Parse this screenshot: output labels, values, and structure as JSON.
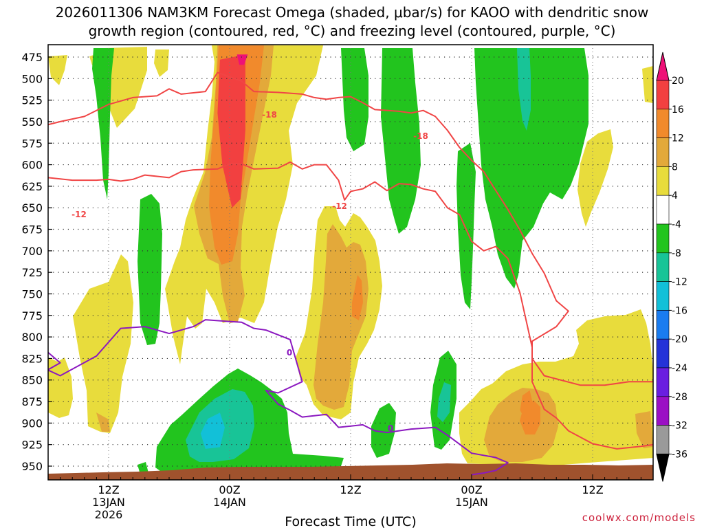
{
  "chart_data": {
    "type": "heatmap",
    "title_line1": "2026011306 NAM3KM Forecast Omega (shaded, μbar/s) for KAOO with dendritic snow",
    "title_line2": "growth region (contoured, red, °C) and freezing level (contoured, purple, °C)",
    "xlabel": "Forecast Time (UTC)",
    "ylabel": "",
    "credit": "coolwx.com/models",
    "y_axis": {
      "units": "mb",
      "range": [
        465,
        960
      ],
      "ticks": [
        475,
        500,
        525,
        550,
        575,
        600,
        625,
        650,
        675,
        700,
        725,
        750,
        775,
        800,
        825,
        850,
        875,
        900,
        925,
        950
      ]
    },
    "x_axis": {
      "units": "forecast hour",
      "range": [
        6,
        57
      ],
      "ticks": [
        {
          "hour": 12,
          "label": "12Z",
          "date": "13JAN",
          "year": "2026"
        },
        {
          "hour": 22,
          "label": "00Z",
          "date": "14JAN",
          "year": ""
        },
        {
          "hour": 32,
          "label": "12Z",
          "date": "",
          "year": ""
        },
        {
          "hour": 42,
          "label": "00Z",
          "date": "15JAN",
          "year": ""
        },
        {
          "hour": 52,
          "label": "12Z",
          "date": "",
          "year": ""
        }
      ]
    },
    "colorbar": {
      "ticks": [
        "20",
        "16",
        "12",
        "8",
        "4",
        "-4",
        "-8",
        "-12",
        "-16",
        "-20",
        "-24",
        "-28",
        "-32",
        "-36"
      ],
      "bins": [
        {
          "range": "12 to 16",
          "color": "#f18a2c"
        },
        {
          "range": "8 to 12",
          "color": "#e3a93a"
        },
        {
          "range": "4 to 8",
          "color": "#e8dc3c"
        },
        {
          "range": "-4 to 4",
          "color": "#ffffff"
        },
        {
          "range": "-8 to -4",
          "color": "#22c41e"
        },
        {
          "range": "-12 to -8",
          "color": "#18c497"
        },
        {
          "range": "-16 to -12",
          "color": "#12c0d8"
        },
        {
          "range": "-20 to -16",
          "color": "#1a7cf0"
        },
        {
          "range": "-24 to -20",
          "color": "#2433d8"
        },
        {
          "range": "-28 to -24",
          "color": "#6a1ee0"
        },
        {
          "range": "-32 to -28",
          "color": "#9b10c4"
        },
        {
          "range": "-36 to -32",
          "color": "#9a9a9a"
        }
      ],
      "top_bin": {
        "range": "16 to 20",
        "color": "#f24040"
      },
      "over_color": "#ee1177",
      "under_color": "#000000"
    },
    "omega_regions": [
      {
        "name": "rising-core-14jan",
        "level": 16,
        "color": "#f24040",
        "points": [
          [
            21.2,
            478
          ],
          [
            22.6,
            474
          ],
          [
            23.3,
            480
          ],
          [
            23.3,
            560
          ],
          [
            22.9,
            640
          ],
          [
            22.2,
            650
          ],
          [
            21.4,
            600
          ],
          [
            21.0,
            540
          ]
        ]
      },
      {
        "name": "rising-peak-14jan",
        "level": 20,
        "color": "#ee1177",
        "points": [
          [
            22.6,
            472
          ],
          [
            23.5,
            472
          ],
          [
            23.2,
            484
          ],
          [
            22.8,
            484
          ]
        ]
      },
      {
        "name": "sinking-core-14jan",
        "level": -12,
        "color": "#12c0d8",
        "points": [
          [
            20.2,
            895
          ],
          [
            21.2,
            888
          ],
          [
            21.6,
            905
          ],
          [
            21.2,
            928
          ],
          [
            20.0,
            930
          ],
          [
            19.6,
            912
          ]
        ]
      },
      {
        "name": "rising-max-15jan",
        "level": 12,
        "color": "#f18a2c",
        "points": [
          [
            46.2,
            868
          ],
          [
            46.8,
            862
          ],
          [
            47.1,
            880
          ],
          [
            46.5,
            898
          ],
          [
            46.0,
            885
          ]
        ]
      }
    ],
    "freezing_level_label": "0",
    "dgz_labels": [
      "-12",
      "-18"
    ],
    "contours": [
      {
        "name": "minus12-isotherm",
        "label": "-12",
        "color": "#f04545",
        "points": [
          [
            6,
            614
          ],
          [
            7,
            615
          ],
          [
            9,
            618
          ],
          [
            11,
            618
          ],
          [
            12,
            617
          ],
          [
            13,
            619
          ],
          [
            14,
            617
          ],
          [
            15,
            612
          ],
          [
            17,
            615
          ],
          [
            18,
            608
          ],
          [
            19,
            606
          ],
          [
            21,
            605
          ],
          [
            22,
            599
          ],
          [
            23,
            599
          ],
          [
            24,
            605
          ],
          [
            26,
            604
          ],
          [
            27,
            597
          ],
          [
            28,
            605
          ],
          [
            29,
            600
          ],
          [
            30,
            600
          ],
          [
            31,
            618
          ],
          [
            31.5,
            641
          ],
          [
            32,
            631
          ],
          [
            33,
            628
          ],
          [
            34,
            620
          ],
          [
            35,
            630
          ],
          [
            36,
            622
          ],
          [
            37,
            623
          ],
          [
            38,
            628
          ],
          [
            39,
            631
          ],
          [
            40,
            650
          ],
          [
            41,
            658
          ],
          [
            42,
            689
          ],
          [
            43,
            700
          ],
          [
            44,
            695
          ],
          [
            45,
            709
          ],
          [
            46,
            749
          ],
          [
            47,
            812
          ],
          [
            47,
            852
          ],
          [
            48,
            884
          ],
          [
            49,
            894
          ],
          [
            50,
            909
          ],
          [
            52,
            924
          ],
          [
            54,
            930
          ],
          [
            56,
            927
          ],
          [
            57,
            925
          ]
        ]
      },
      {
        "name": "minus18-isotherm",
        "label": "-18",
        "color": "#f04545",
        "points": [
          [
            6,
            557
          ],
          [
            8,
            550
          ],
          [
            10,
            544
          ],
          [
            12,
            530
          ],
          [
            14,
            522
          ],
          [
            16,
            520
          ],
          [
            17,
            512
          ],
          [
            18,
            518
          ],
          [
            20,
            515
          ],
          [
            21,
            493
          ],
          [
            23,
            503
          ],
          [
            24,
            515
          ],
          [
            26,
            516
          ],
          [
            28,
            518
          ],
          [
            29,
            522
          ],
          [
            30,
            524
          ],
          [
            31,
            522
          ],
          [
            32,
            521
          ],
          [
            33,
            528
          ],
          [
            34,
            536
          ],
          [
            36,
            538
          ],
          [
            37,
            540
          ],
          [
            38,
            537
          ],
          [
            39,
            544
          ],
          [
            40,
            560
          ],
          [
            41,
            580
          ],
          [
            42,
            595
          ],
          [
            43,
            608
          ],
          [
            44,
            630
          ],
          [
            45,
            652
          ],
          [
            46,
            676
          ],
          [
            47,
            703
          ],
          [
            48,
            726
          ],
          [
            49,
            758
          ],
          [
            50,
            770
          ],
          [
            49,
            788
          ],
          [
            47,
            805
          ],
          [
            47,
            825
          ],
          [
            48,
            845
          ],
          [
            51,
            856
          ],
          [
            53,
            856
          ],
          [
            55,
            852
          ],
          [
            57,
            852
          ]
        ]
      },
      {
        "name": "zero-isotherm",
        "label": "0",
        "color": "#8b18c0",
        "points": [
          [
            6,
            805
          ],
          [
            7,
            818
          ],
          [
            8,
            830
          ],
          [
            7,
            838
          ],
          [
            6,
            832
          ],
          [
            8,
            845
          ],
          [
            11,
            822
          ],
          [
            13,
            790
          ],
          [
            15,
            788
          ],
          [
            17,
            796
          ],
          [
            19,
            788
          ],
          [
            20,
            780
          ],
          [
            22,
            782
          ],
          [
            23,
            783
          ],
          [
            24,
            790
          ],
          [
            25,
            792
          ],
          [
            27,
            803
          ],
          [
            28,
            852
          ],
          [
            26,
            865
          ],
          [
            25,
            862
          ],
          [
            26,
            878
          ],
          [
            27,
            885
          ],
          [
            28,
            893
          ],
          [
            30,
            890
          ],
          [
            31,
            905
          ],
          [
            33,
            902
          ],
          [
            34,
            909
          ],
          [
            35,
            911
          ],
          [
            37,
            907
          ],
          [
            39,
            905
          ],
          [
            40,
            914
          ],
          [
            42,
            935
          ],
          [
            44,
            940
          ],
          [
            45,
            946
          ],
          [
            44,
            955
          ],
          [
            43,
            958
          ],
          [
            42,
            960
          ]
        ]
      }
    ]
  }
}
